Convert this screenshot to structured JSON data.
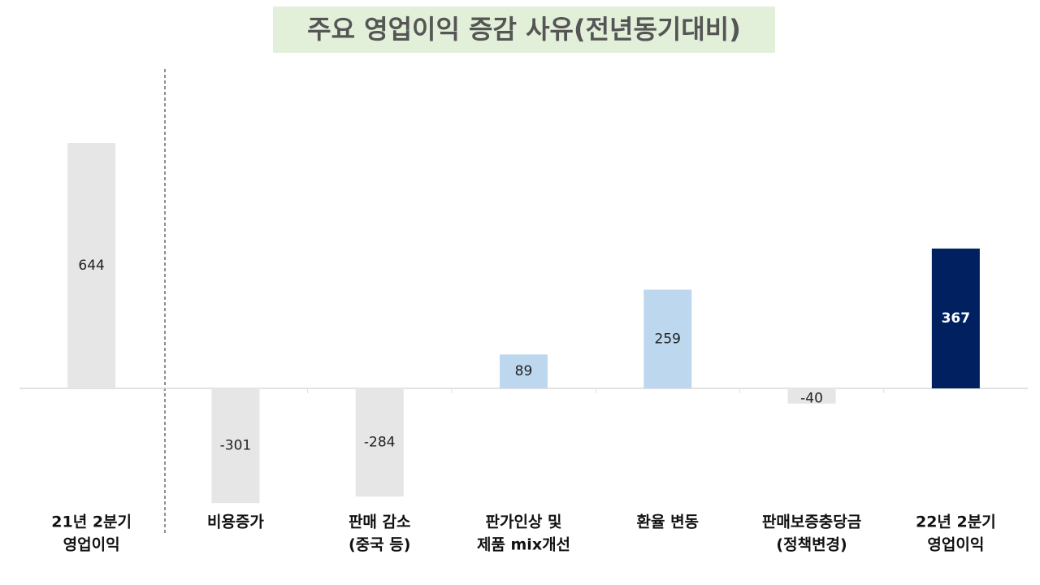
{
  "chart_data": {
    "type": "bar",
    "title": "주요 영업이익 증감 사유(전년동기대비)",
    "categories": [
      [
        "21년 2분기",
        "영업이익"
      ],
      [
        "비용증가"
      ],
      [
        "판매 감소",
        "(중국 등)"
      ],
      [
        "판가인상 및",
        "제품 mix개선"
      ],
      [
        "환율 변동"
      ],
      [
        "판매보증충당금",
        "(정책변경)"
      ],
      [
        "22년 2분기",
        "영업이익"
      ]
    ],
    "values": [
      644,
      -301,
      -284,
      89,
      259,
      -40,
      367
    ],
    "colors": [
      "#e6e6e6",
      "#e6e6e6",
      "#e6e6e6",
      "#bdd7ee",
      "#bdd7ee",
      "#e6e6e6",
      "#002060"
    ],
    "label_colors": [
      "#222222",
      "#222222",
      "#222222",
      "#222222",
      "#222222",
      "#222222",
      "#ffffff"
    ]
  }
}
